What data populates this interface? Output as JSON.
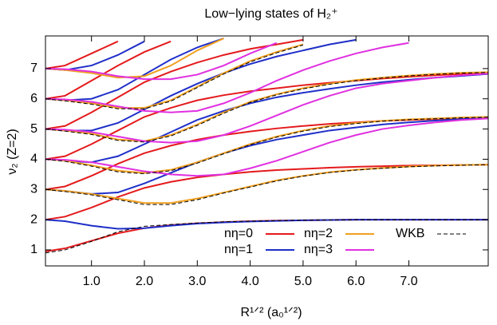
{
  "chart_data": {
    "type": "line",
    "title": "Low−lying states of H₂⁺",
    "x_label": "R¹ᐟ² (a₀¹ᐟ²)",
    "y_label": "ν₂ (Z=2)",
    "x": [
      0.13,
      0.5,
      1,
      1.5,
      2,
      2.5,
      3,
      3.5,
      4,
      4.5,
      5,
      5.5,
      6,
      6.5,
      7,
      7.5,
      8,
      8.5
    ],
    "xlim": [
      0.13,
      8.5
    ],
    "ylim": [
      0.47,
      8.08
    ],
    "xticks": [
      {
        "value": 1,
        "label": "1.0"
      },
      {
        "value": 2,
        "label": "2.0"
      },
      {
        "value": 3,
        "label": "3.0"
      },
      {
        "value": 4,
        "label": "4.0"
      },
      {
        "value": 5,
        "label": "5.0"
      },
      {
        "value": 6,
        "label": "6.0"
      },
      {
        "value": 7,
        "label": "7.0"
      }
    ],
    "yticks": [
      1,
      2,
      3,
      4,
      5,
      6,
      7
    ],
    "grid": false,
    "legend": "bottom-right",
    "series": [
      {
        "name": "nη=0",
        "color": "#e41a1c",
        "dash": false,
        "curves": [
          [
            0.95,
            1.05,
            1.3,
            1.55,
            1.72,
            1.82,
            1.88,
            1.92,
            1.95,
            1.97,
            1.98,
            1.99,
            2,
            2,
            2,
            2,
            2,
            2
          ],
          [
            2.0,
            2.1,
            2.4,
            2.75,
            3.05,
            3.25,
            3.4,
            3.5,
            3.58,
            3.64,
            3.68,
            3.72,
            3.75,
            3.77,
            3.79,
            3.8,
            3.81,
            3.82
          ],
          [
            3.0,
            3.1,
            3.45,
            3.85,
            4.2,
            4.45,
            4.65,
            4.8,
            4.92,
            5.02,
            5.1,
            5.17,
            5.22,
            5.27,
            5.3,
            5.33,
            5.36,
            5.38
          ],
          [
            4.0,
            4.1,
            4.5,
            4.95,
            5.4,
            5.7,
            5.95,
            6.12,
            6.25,
            6.35,
            6.45,
            6.53,
            6.6,
            6.67,
            6.73,
            6.78,
            6.82,
            6.85
          ],
          [
            5.0,
            5.1,
            5.55,
            6.05,
            6.55,
            6.9,
            7.2,
            7.45,
            7.65,
            7.8,
            7.95,
            null,
            null,
            null,
            null,
            null,
            null,
            null
          ],
          [
            6.0,
            6.1,
            6.6,
            7.1,
            7.55,
            7.9,
            null,
            null,
            null,
            null,
            null,
            null,
            null,
            null,
            null,
            null,
            null,
            null
          ],
          [
            7.0,
            7.1,
            7.5,
            7.9,
            null,
            null,
            null,
            null,
            null,
            null,
            null,
            null,
            null,
            null,
            null,
            null,
            null,
            null
          ]
        ]
      },
      {
        "name": "nη=1",
        "color": "#1f2fc8",
        "dash": false,
        "curves": [
          [
            2.0,
            1.95,
            1.8,
            1.7,
            1.72,
            1.8,
            1.87,
            1.91,
            1.94,
            1.96,
            1.98,
            1.99,
            2,
            2,
            2,
            2,
            2,
            2
          ],
          [
            3.0,
            2.95,
            2.85,
            2.9,
            3.2,
            3.55,
            3.9,
            4.2,
            4.45,
            4.65,
            4.8,
            4.95,
            5.05,
            5.15,
            5.22,
            5.28,
            5.33,
            5.37
          ],
          [
            4.0,
            3.95,
            3.9,
            4.1,
            4.5,
            4.9,
            5.3,
            5.6,
            5.85,
            6.05,
            6.2,
            6.33,
            6.45,
            6.55,
            6.63,
            6.7,
            6.76,
            6.82
          ],
          [
            5.0,
            4.95,
            4.95,
            5.2,
            5.65,
            6.1,
            6.5,
            6.85,
            7.15,
            7.4,
            7.6,
            7.8,
            7.95,
            null,
            null,
            null,
            null,
            null
          ],
          [
            6.0,
            5.95,
            6.0,
            6.3,
            6.8,
            7.3,
            7.7,
            8.0,
            null,
            null,
            null,
            null,
            null,
            null,
            null,
            null,
            null,
            null
          ],
          [
            7.0,
            6.95,
            7.1,
            7.45,
            7.9,
            null,
            null,
            null,
            null,
            null,
            null,
            null,
            null,
            null,
            null,
            null,
            null,
            null
          ]
        ]
      },
      {
        "name": "nη=2",
        "color": "#f0a020",
        "dash": false,
        "curves": [
          [
            3.0,
            2.95,
            2.85,
            2.7,
            2.55,
            2.55,
            2.7,
            2.9,
            3.1,
            3.3,
            3.45,
            3.57,
            3.65,
            3.71,
            3.76,
            3.79,
            3.81,
            3.82
          ],
          [
            4.0,
            3.95,
            3.8,
            3.62,
            3.55,
            3.65,
            3.9,
            4.2,
            4.5,
            4.75,
            4.95,
            5.1,
            5.2,
            5.27,
            5.32,
            5.35,
            5.38,
            5.4
          ],
          [
            5.0,
            4.95,
            4.85,
            4.65,
            4.6,
            4.8,
            5.15,
            5.55,
            5.9,
            6.15,
            6.35,
            6.5,
            6.62,
            6.7,
            6.77,
            6.82,
            6.86,
            6.88
          ],
          [
            6.0,
            5.95,
            5.85,
            5.7,
            5.7,
            5.95,
            6.4,
            6.85,
            7.25,
            7.55,
            7.8,
            null,
            null,
            null,
            null,
            null,
            null,
            null
          ],
          [
            7.0,
            6.95,
            6.85,
            6.7,
            6.75,
            7.1,
            7.6,
            8.0,
            null,
            null,
            null,
            null,
            null,
            null,
            null,
            null,
            null,
            null
          ]
        ]
      },
      {
        "name": "nη=3",
        "color": "#e030e0",
        "dash": false,
        "curves": [
          [
            4.0,
            3.98,
            3.9,
            3.75,
            3.6,
            3.5,
            3.45,
            3.5,
            3.7,
            3.95,
            4.25,
            4.55,
            4.8,
            5.0,
            5.12,
            5.22,
            5.3,
            5.35
          ],
          [
            5.0,
            4.98,
            4.9,
            4.75,
            4.6,
            4.55,
            4.6,
            4.8,
            5.1,
            5.45,
            5.8,
            6.1,
            6.35,
            6.5,
            6.6,
            6.7,
            6.78,
            6.83
          ],
          [
            6.0,
            5.98,
            5.9,
            5.75,
            5.6,
            5.55,
            5.6,
            5.85,
            6.2,
            6.6,
            6.95,
            7.25,
            7.5,
            7.7,
            7.85,
            null,
            null,
            null
          ],
          [
            7.0,
            6.98,
            6.9,
            6.75,
            6.65,
            6.65,
            6.8,
            7.1,
            7.5,
            7.85,
            null,
            null,
            null,
            null,
            null,
            null,
            null,
            null
          ]
        ]
      },
      {
        "name": "WKB",
        "color": "#000000",
        "dash": true,
        "curves": [
          [
            0.9,
            1.0,
            1.28,
            1.6,
            1.78,
            1.84,
            1.89,
            1.93,
            1.95,
            1.97,
            1.98,
            1.99,
            2,
            2,
            2,
            2,
            2,
            2
          ],
          [
            3.0,
            2.93,
            2.82,
            2.66,
            2.5,
            2.5,
            2.66,
            2.88,
            3.08,
            3.28,
            3.44,
            3.56,
            3.64,
            3.7,
            3.75,
            3.78,
            3.8,
            3.82
          ],
          [
            4.0,
            3.93,
            3.77,
            3.58,
            3.52,
            3.62,
            3.87,
            4.18,
            4.48,
            4.73,
            4.93,
            5.08,
            5.18,
            5.26,
            5.31,
            5.34,
            5.37,
            5.39
          ],
          [
            5.0,
            4.93,
            4.82,
            4.62,
            4.57,
            4.77,
            5.12,
            5.52,
            5.88,
            6.13,
            6.33,
            6.48,
            6.6,
            6.69,
            6.76,
            6.81,
            6.85,
            6.87
          ],
          [
            6.0,
            5.93,
            5.82,
            5.67,
            5.67,
            5.92,
            6.37,
            6.82,
            7.22,
            7.52,
            7.78,
            null,
            null,
            null,
            null,
            null,
            null,
            null
          ]
        ]
      }
    ]
  }
}
